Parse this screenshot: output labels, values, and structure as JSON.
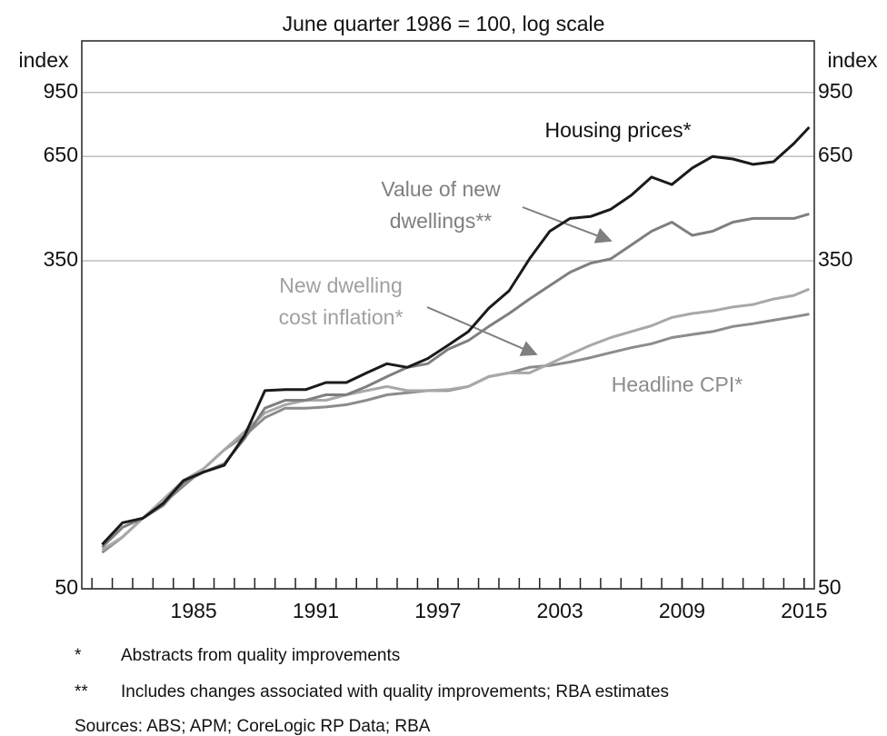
{
  "chart_data": {
    "type": "line",
    "title": "June quarter 1986 = 100, log scale",
    "y_label": "index",
    "log_scale": true,
    "grid": true,
    "ylim": [
      50,
      1290
    ],
    "yticks": [
      50,
      350,
      650,
      950
    ],
    "xlim": [
      1979.5,
      2015.5
    ],
    "xticks": [
      1985,
      1991,
      1997,
      2003,
      2009,
      2015
    ],
    "x_minor_ticks": [
      1980,
      1981,
      1982,
      1983,
      1984,
      1985,
      1986,
      1987,
      1988,
      1989,
      1990,
      1991,
      1992,
      1993,
      1994,
      1995,
      1996,
      1997,
      1998,
      1999,
      2000,
      2001,
      2002,
      2003,
      2004,
      2005,
      2006,
      2007,
      2008,
      2009,
      2010,
      2011,
      2012,
      2013,
      2014,
      2015
    ],
    "x": [
      1980.5,
      1981.5,
      1982.5,
      1983.5,
      1984.5,
      1985.5,
      1986.5,
      1987.5,
      1988.5,
      1989.5,
      1990.5,
      1991.5,
      1992.5,
      1993.5,
      1994.5,
      1995.5,
      1996.5,
      1997.5,
      1998.5,
      1999.5,
      2000.5,
      2001.5,
      2002.5,
      2003.5,
      2004.5,
      2005.5,
      2006.5,
      2007.5,
      2008.5,
      2009.5,
      2010.5,
      2011.5,
      2012.5,
      2013.5,
      2014.5,
      2015.25
    ],
    "series": [
      {
        "name": "Housing prices*",
        "color": "#1a1a1a",
        "values": [
          65,
          74,
          76,
          83,
          95,
          100,
          104,
          124,
          162,
          163,
          163,
          170,
          170,
          180,
          190,
          186,
          196,
          212,
          230,
          264,
          293,
          354,
          417,
          450,
          455,
          475,
          516,
          575,
          550,
          607,
          650,
          640,
          620,
          630,
          702,
          773
        ]
      },
      {
        "name": "Value of new dwellings**",
        "color": "#7f7f7f",
        "values": [
          64,
          72,
          76,
          82,
          94,
          100,
          105,
          122,
          146,
          153,
          153,
          158,
          158,
          166,
          176,
          186,
          190,
          207,
          218,
          237,
          256,
          279,
          302,
          327,
          345,
          354,
          384,
          417,
          440,
          407,
          417,
          440,
          450,
          450,
          450,
          462
        ]
      },
      {
        "name": "New dwelling cost inflation*",
        "color": "#a8a8a8",
        "values": [
          63,
          68,
          76,
          85,
          95,
          102,
          114,
          127,
          142,
          149,
          153,
          153,
          158,
          162,
          166,
          162,
          162,
          163,
          166,
          176,
          180,
          180,
          190,
          201,
          212,
          222,
          230,
          238,
          250,
          256,
          260,
          266,
          270,
          279,
          285,
          296
        ]
      },
      {
        "name": "Headline CPI*",
        "color": "#8c8c8c",
        "values": [
          62,
          68,
          76,
          83,
          92,
          102,
          114,
          124,
          138,
          146,
          146,
          147,
          149,
          153,
          158,
          160,
          162,
          162,
          166,
          176,
          180,
          186,
          188,
          192,
          197,
          203,
          209,
          214,
          222,
          226,
          230,
          237,
          241,
          246,
          251,
          255
        ]
      }
    ],
    "annotations": [
      [
        "Housing prices*"
      ],
      [
        "Value of new",
        "dwellings**"
      ],
      [
        "New dwelling",
        "cost inflation*"
      ],
      [
        "Headline CPI*"
      ]
    ],
    "footnotes": [
      {
        "marker": "*",
        "text": "Abstracts from quality improvements"
      },
      {
        "marker": "**",
        "text": "Includes changes associated with quality improvements; RBA estimates"
      }
    ],
    "source": "Sources:  ABS; APM; CoreLogic RP Data; RBA"
  }
}
